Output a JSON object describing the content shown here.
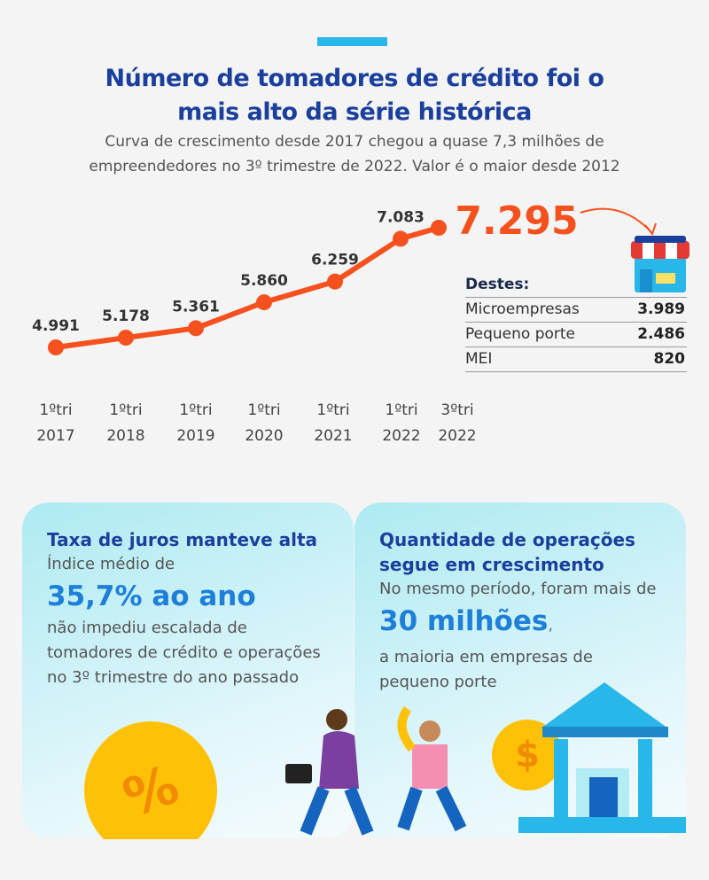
{
  "header": {
    "title": "Número de tomadores de crédito foi o mais alto da série histórica",
    "subtitle": "Curva de crescimento desde 2017 chegou a quase 7,3 milhões de empreendedores no 3º trimestre de 2022. Valor é o maior desde 2012"
  },
  "chart_data": {
    "type": "line",
    "categories": [
      "1ºtri 2017",
      "1ºtri 2018",
      "1ºtri 2019",
      "1ºtri 2020",
      "1ºtri 2021",
      "1ºtri 2022",
      "3ºtri 2022"
    ],
    "values": [
      4991,
      5178,
      5361,
      5860,
      6259,
      7083,
      7295
    ],
    "value_labels": [
      "4.991",
      "5.178",
      "5.361",
      "5.860",
      "6.259",
      "7.083",
      "7.295"
    ],
    "color": "#f4511e"
  },
  "breakdown": {
    "title": "Destes:",
    "rows": [
      [
        "Microempresas",
        "3.989"
      ],
      [
        "Pequeno porte",
        "2.486"
      ],
      [
        "MEI",
        "820"
      ]
    ]
  },
  "cards": [
    {
      "title": "Taxa de juros manteve alta",
      "lead": "Índice médio de",
      "highlight": "35,7% ao ano",
      "body": "não impediu escalada de tomadores de crédito e operações no 3º trimestre do ano passado"
    },
    {
      "title": "Quantidade de operações segue em crescimento",
      "lead": "No mesmo período, foram mais de",
      "highlight": "30 milhões",
      "punctuation": ",",
      "body": "a maioria em empresas de pequeno porte"
    }
  ]
}
